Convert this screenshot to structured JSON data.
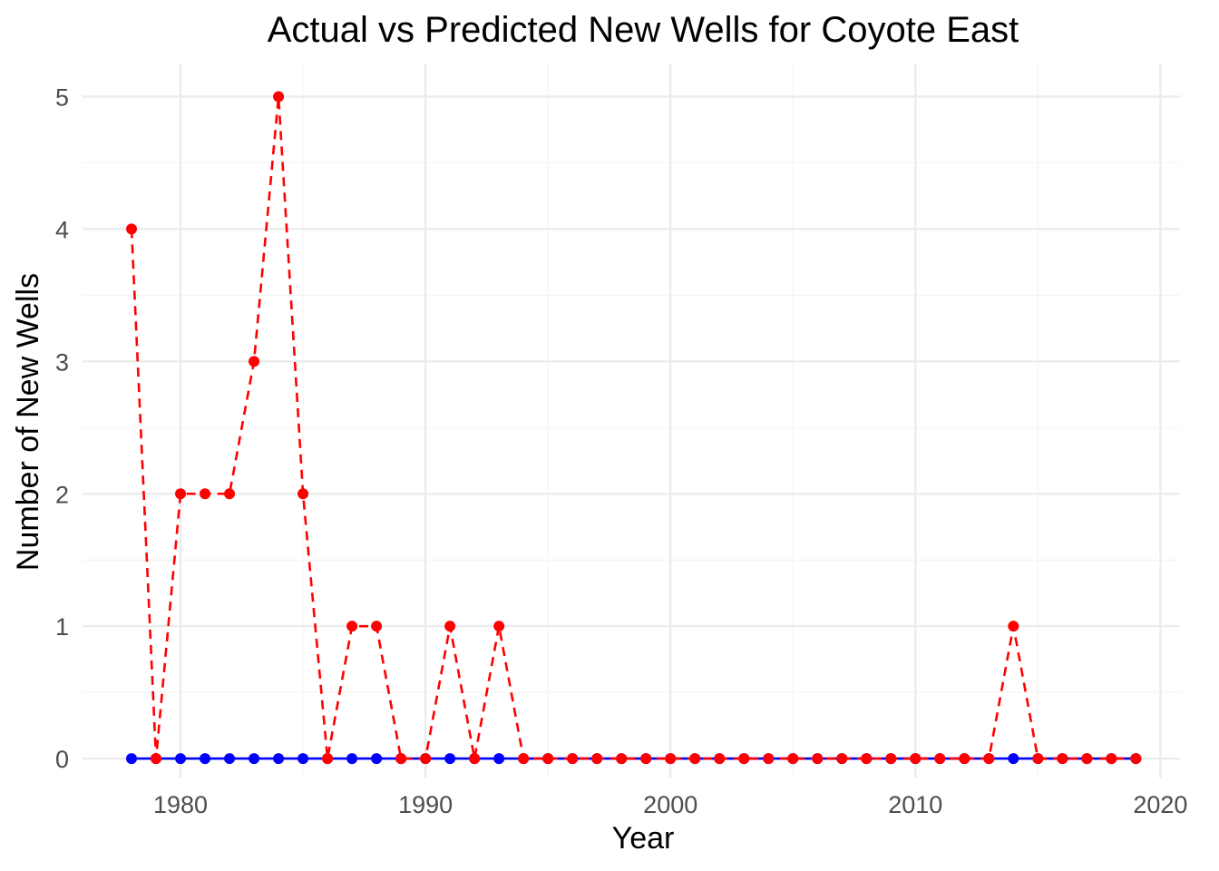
{
  "chart_data": {
    "type": "line",
    "title": "Actual vs Predicted New Wells for Coyote  East",
    "xlabel": "Year",
    "ylabel": "Number of New Wells",
    "xlim": [
      1976,
      2020.8
    ],
    "ylim": [
      -0.15,
      5.25
    ],
    "x_ticks": [
      1980,
      1990,
      2000,
      2010,
      2020
    ],
    "y_ticks": [
      0,
      1,
      2,
      3,
      4,
      5
    ],
    "grid": true,
    "legend": "none",
    "x": [
      1978,
      1979,
      1980,
      1981,
      1982,
      1983,
      1984,
      1985,
      1986,
      1987,
      1988,
      1989,
      1990,
      1991,
      1992,
      1993,
      1994,
      1995,
      1996,
      1997,
      1998,
      1999,
      2000,
      2001,
      2002,
      2003,
      2004,
      2005,
      2006,
      2007,
      2008,
      2009,
      2010,
      2011,
      2012,
      2013,
      2014,
      2015,
      2016,
      2017,
      2018,
      2019
    ],
    "series": [
      {
        "color": "#0000ff",
        "line_style": "solid",
        "values": [
          0,
          0,
          0,
          0,
          0,
          0,
          0,
          0,
          0,
          0,
          0,
          0,
          0,
          0,
          0,
          0,
          0,
          0,
          0,
          0,
          0,
          0,
          0,
          0,
          0,
          0,
          0,
          0,
          0,
          0,
          0,
          0,
          0,
          0,
          0,
          0,
          0,
          0,
          0,
          0,
          0,
          0
        ]
      },
      {
        "color": "#ff0000",
        "line_style": "dashed",
        "values": [
          4,
          0,
          2,
          2,
          2,
          3,
          5,
          2,
          0,
          1,
          1,
          0,
          0,
          1,
          0,
          1,
          0,
          0,
          0,
          0,
          0,
          0,
          0,
          0,
          0,
          0,
          0,
          0,
          0,
          0,
          0,
          0,
          0,
          0,
          0,
          0,
          1,
          0,
          0,
          0,
          0,
          0
        ]
      }
    ]
  }
}
